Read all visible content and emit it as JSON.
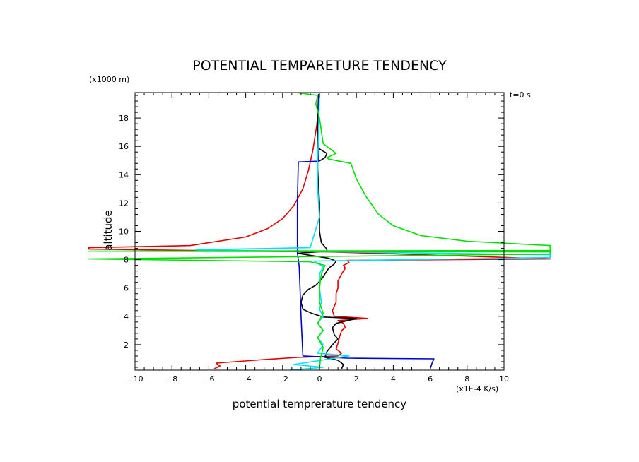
{
  "chart_data": {
    "type": "line",
    "title": "POTENTIAL TEMPARETURE TENDENCY",
    "xlabel": "potential temprerature tendency",
    "ylabel": "altitude",
    "x_unit": "(x1E-4 K/s)",
    "y_unit": "(x1000 m)",
    "time_label": "t=0 s",
    "xlim": [
      -10,
      10
    ],
    "ylim": [
      0.2,
      19.8
    ],
    "x_ticks": [
      -10,
      -8,
      -6,
      -4,
      -2,
      0,
      2,
      4,
      6,
      8,
      10
    ],
    "y_ticks": [
      2,
      4,
      6,
      8,
      10,
      12,
      14,
      16,
      18
    ],
    "grid": false,
    "legend": "none",
    "series": [
      {
        "color": "#e00000",
        "points": [
          [
            -5.7,
            0.3
          ],
          [
            -5.4,
            0.5
          ],
          [
            -5.6,
            0.7
          ],
          [
            -3,
            0.95
          ],
          [
            -1.2,
            1.1
          ],
          [
            1.0,
            1.2
          ],
          [
            1.2,
            1.4
          ],
          [
            0.9,
            1.7
          ],
          [
            1.0,
            2.1
          ],
          [
            1.1,
            2.6
          ],
          [
            1.2,
            3.0
          ],
          [
            1.4,
            3.2
          ],
          [
            1.3,
            3.5
          ],
          [
            1.0,
            3.7
          ],
          [
            2.6,
            3.85
          ],
          [
            0.8,
            4.0
          ],
          [
            0.7,
            4.4
          ],
          [
            0.9,
            5.0
          ],
          [
            0.9,
            5.6
          ],
          [
            1.0,
            6.0
          ],
          [
            1.0,
            6.5
          ],
          [
            1.2,
            7.0
          ],
          [
            1.4,
            7.4
          ],
          [
            1.3,
            7.6
          ],
          [
            1.6,
            7.8
          ],
          [
            1.5,
            7.95
          ],
          [
            12.5,
            8.05
          ],
          [
            8,
            8.25
          ],
          [
            3,
            8.45
          ],
          [
            0.5,
            8.55
          ],
          [
            -5,
            8.62
          ],
          [
            -12.5,
            8.75
          ],
          [
            -12.5,
            8.85
          ],
          [
            -7,
            9.0
          ],
          [
            -4,
            9.6
          ],
          [
            -2.8,
            10.2
          ],
          [
            -2.0,
            10.9
          ],
          [
            -1.4,
            11.8
          ],
          [
            -0.9,
            13.0
          ],
          [
            -0.6,
            14.3
          ],
          [
            -0.35,
            15.8
          ],
          [
            -0.15,
            17.5
          ],
          [
            -0.05,
            18.8
          ],
          [
            -0.02,
            19.7
          ]
        ]
      },
      {
        "color": "#000000",
        "points": [
          [
            1.2,
            0.3
          ],
          [
            1.3,
            0.6
          ],
          [
            1.0,
            0.9
          ],
          [
            0.3,
            1.1
          ],
          [
            0.4,
            1.5
          ],
          [
            0.7,
            2.0
          ],
          [
            1.0,
            2.4
          ],
          [
            0.8,
            2.7
          ],
          [
            0.7,
            3.2
          ],
          [
            0.9,
            3.5
          ],
          [
            2.0,
            3.85
          ],
          [
            0.2,
            3.95
          ],
          [
            -0.4,
            4.2
          ],
          [
            -0.9,
            4.5
          ],
          [
            -1.0,
            5.0
          ],
          [
            -0.9,
            5.5
          ],
          [
            -0.6,
            5.9
          ],
          [
            -0.2,
            6.2
          ],
          [
            0.1,
            6.6
          ],
          [
            0.3,
            7.0
          ],
          [
            0.5,
            7.4
          ],
          [
            0.8,
            7.7
          ],
          [
            0.9,
            7.9
          ],
          [
            0.5,
            8.1
          ],
          [
            -1.2,
            8.45
          ],
          [
            0.4,
            8.6
          ],
          [
            0.4,
            8.75
          ],
          [
            0.1,
            9.2
          ],
          [
            0.0,
            10
          ],
          [
            0,
            12
          ],
          [
            -0.1,
            14.5
          ],
          [
            -0.1,
            14.9
          ],
          [
            0.3,
            15.2
          ],
          [
            0.4,
            15.5
          ],
          [
            -0.1,
            15.9
          ],
          [
            -0.1,
            18
          ],
          [
            -0.05,
            19.7
          ]
        ]
      },
      {
        "color": "#0000cc",
        "points": [
          [
            6.0,
            0.3
          ],
          [
            6.1,
            0.7
          ],
          [
            6.2,
            1.0
          ],
          [
            1.5,
            1.05
          ],
          [
            -0.9,
            1.2
          ],
          [
            -1.0,
            4.0
          ],
          [
            -1.1,
            7.5
          ],
          [
            -1.2,
            8.5
          ],
          [
            -1.2,
            12
          ],
          [
            -1.15,
            14.9
          ],
          [
            -0.05,
            14.95
          ],
          [
            -0.05,
            17
          ],
          [
            -0.05,
            19.6
          ]
        ]
      },
      {
        "color": "#00e0ff",
        "points": [
          [
            -1.6,
            0.2
          ],
          [
            0.2,
            0.4
          ],
          [
            -1.4,
            0.6
          ],
          [
            1.6,
            1.2
          ],
          [
            -0.1,
            1.4
          ],
          [
            0.2,
            2.0
          ],
          [
            -0.1,
            2.5
          ],
          [
            0.2,
            3.0
          ],
          [
            -0.1,
            3.5
          ],
          [
            0.2,
            4.0
          ],
          [
            0.0,
            4.5
          ],
          [
            0.1,
            5.0
          ],
          [
            0.0,
            6.0
          ],
          [
            0.0,
            7.0
          ],
          [
            0.2,
            7.5
          ],
          [
            -0.3,
            7.9
          ],
          [
            12.5,
            8.15
          ],
          [
            12.5,
            8.35
          ],
          [
            -1.5,
            8.6
          ],
          [
            -6.7,
            8.7
          ],
          [
            -0.5,
            8.85
          ],
          [
            0.0,
            11
          ],
          [
            -0.1,
            13
          ],
          [
            -0.1,
            15
          ],
          [
            -0.05,
            17
          ],
          [
            0.0,
            19.7
          ]
        ]
      },
      {
        "color": "#00e000",
        "points": [
          [
            0.0,
            0.3
          ],
          [
            0.05,
            1.0
          ],
          [
            0.2,
            1.8
          ],
          [
            -0.1,
            2.5
          ],
          [
            0.2,
            3.0
          ],
          [
            -0.1,
            3.5
          ],
          [
            0.2,
            4.2
          ],
          [
            0.0,
            5
          ],
          [
            0.0,
            6
          ],
          [
            0.1,
            7.0
          ],
          [
            0.3,
            7.6
          ],
          [
            -0.5,
            7.85
          ],
          [
            -12.5,
            8.05
          ],
          [
            12.5,
            8.4
          ],
          [
            12.5,
            8.55
          ],
          [
            -12.5,
            8.6
          ],
          [
            12.5,
            8.65
          ],
          [
            12.5,
            9.0
          ],
          [
            8,
            9.3
          ],
          [
            5.5,
            9.7
          ],
          [
            4,
            10.4
          ],
          [
            3.2,
            11.2
          ],
          [
            2.5,
            12.5
          ],
          [
            2.0,
            13.7
          ],
          [
            1.7,
            14.8
          ],
          [
            0.5,
            15.1
          ],
          [
            0.4,
            15.2
          ],
          [
            0.9,
            15.5
          ],
          [
            0.2,
            16.2
          ],
          [
            0.0,
            18.0
          ],
          [
            -0.2,
            19.0
          ],
          [
            -0.1,
            19.6
          ],
          [
            -1.3,
            19.8
          ]
        ]
      }
    ]
  }
}
